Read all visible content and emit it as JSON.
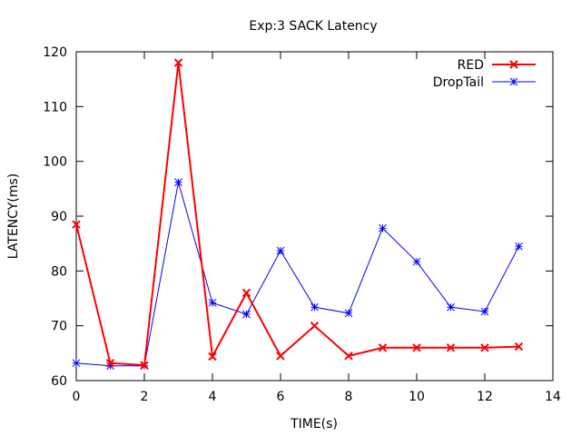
{
  "chart_data": {
    "type": "line",
    "title": "Exp:3 SACK Latency",
    "xlabel": "TIME(s)",
    "ylabel": "LATENCY(ms)",
    "xlim": [
      0,
      14
    ],
    "ylim": [
      60,
      120
    ],
    "xticks": [
      0,
      2,
      4,
      6,
      8,
      10,
      12,
      14
    ],
    "yticks": [
      60,
      70,
      80,
      90,
      100,
      110,
      120
    ],
    "grid": false,
    "legend_position": "top-right",
    "x": [
      0,
      1,
      2,
      3,
      4,
      5,
      6,
      7,
      8,
      9,
      10,
      11,
      12,
      13
    ],
    "series": [
      {
        "name": "RED",
        "color": "#ff0000",
        "marker": "x",
        "values": [
          88.5,
          63.2,
          62.8,
          118,
          64.4,
          76,
          64.5,
          70,
          64.5,
          66,
          66,
          66,
          66,
          66.2
        ]
      },
      {
        "name": "DropTail",
        "color": "#0000ff",
        "marker": "star",
        "values": [
          63.2,
          62.7,
          62.7,
          96.2,
          74.2,
          72.1,
          83.7,
          73.4,
          72.3,
          87.8,
          81.7,
          73.4,
          72.6,
          84.5
        ]
      }
    ]
  }
}
